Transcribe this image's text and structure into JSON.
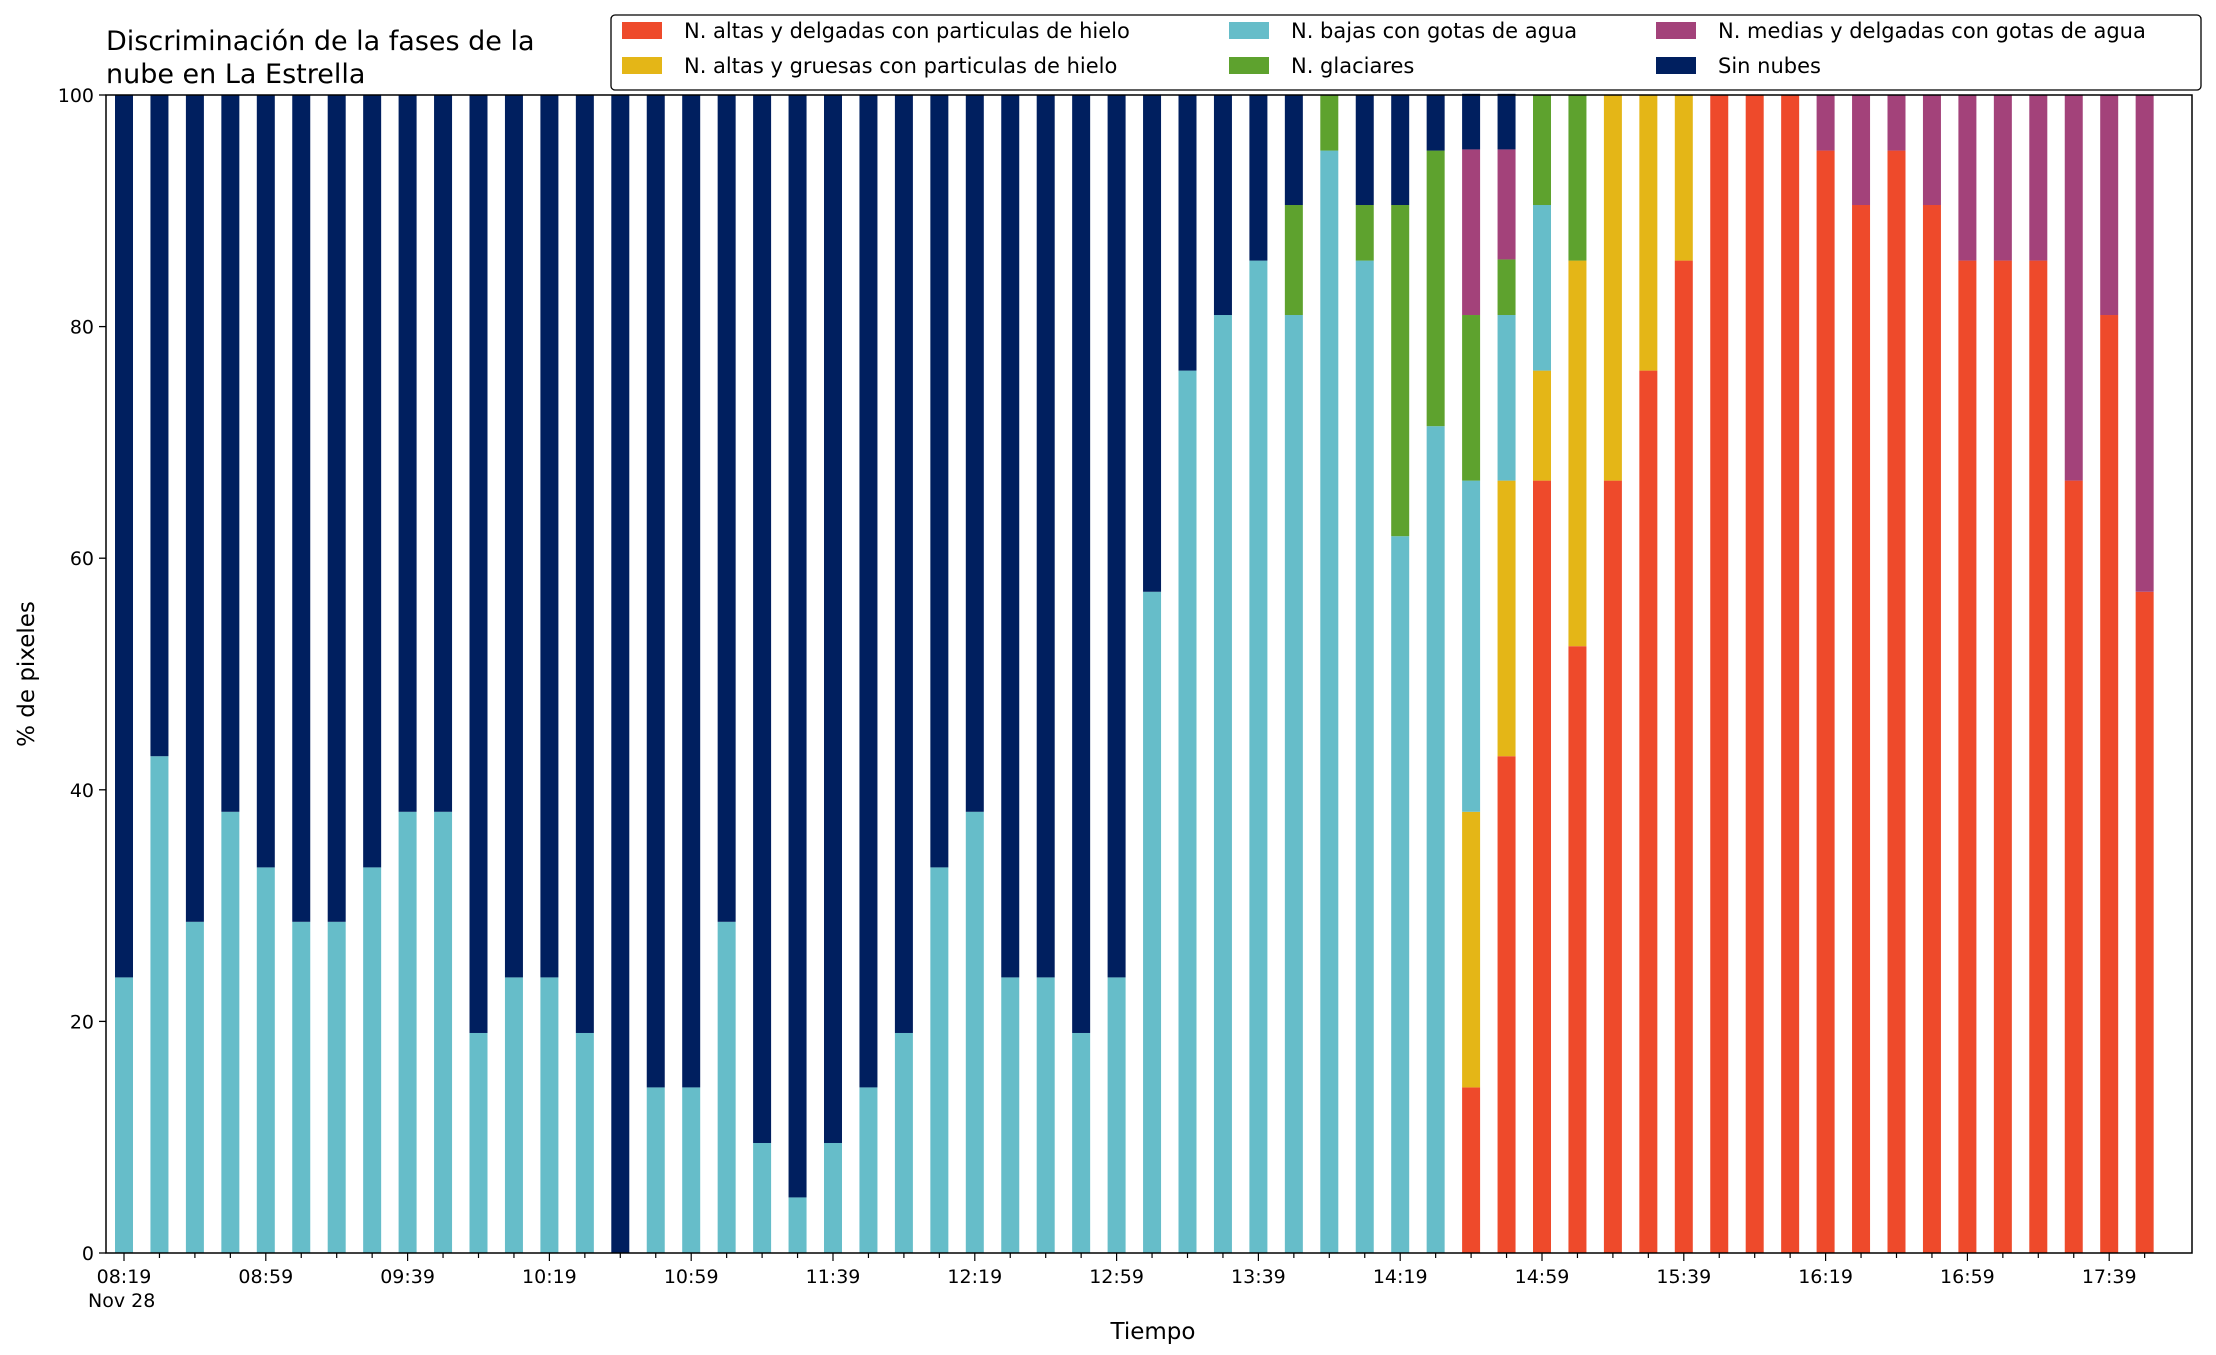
{
  "chart_data": {
    "type": "bar",
    "stacked": true,
    "title": "Discriminación de la fases de la\nnube en La Estrella",
    "xlabel": "Tiempo",
    "ylabel": "% de pixeles",
    "ylim": [
      0,
      100
    ],
    "yticks": [
      0,
      20,
      40,
      60,
      80,
      100
    ],
    "xtick_labels": [
      "08:19",
      "08:59",
      "09:39",
      "10:19",
      "10:59",
      "11:39",
      "12:19",
      "12:59",
      "13:39",
      "14:19",
      "14:59",
      "15:39",
      "16:19",
      "16:59",
      "17:39"
    ],
    "x_date_label": "Nov 28",
    "legend_position": "top-right",
    "grid": false,
    "categories": [
      "08:19",
      "08:29",
      "08:39",
      "08:49",
      "08:59",
      "09:09",
      "09:19",
      "09:29",
      "09:39",
      "09:49",
      "09:59",
      "10:09",
      "10:19",
      "10:29",
      "10:39",
      "10:49",
      "10:59",
      "11:09",
      "11:19",
      "11:29",
      "11:39",
      "11:49",
      "11:59",
      "12:09",
      "12:19",
      "12:29",
      "12:39",
      "12:49",
      "12:59",
      "13:09",
      "13:19",
      "13:29",
      "13:39",
      "13:49",
      "13:59",
      "14:09",
      "14:19",
      "14:29",
      "14:39",
      "14:49",
      "14:59",
      "15:09",
      "15:19",
      "15:29",
      "15:39",
      "15:49",
      "15:59",
      "16:09",
      "16:19",
      "16:29",
      "16:39",
      "16:49",
      "16:59",
      "17:09",
      "17:19",
      "17:29",
      "17:39",
      "17:49"
    ],
    "series": [
      {
        "name": "N. altas y delgadas con particulas de hielo",
        "color": "#ee4a2b",
        "values": [
          0,
          0,
          0,
          0,
          0,
          0,
          0,
          0,
          0,
          0,
          0,
          0,
          0,
          0,
          0,
          0,
          0,
          0,
          0,
          0,
          0,
          0,
          0,
          0,
          0,
          0,
          0,
          0,
          0,
          0,
          0,
          0,
          0,
          0,
          0,
          0,
          0,
          0,
          14.3,
          42.9,
          66.7,
          52.4,
          66.7,
          76.2,
          85.7,
          100,
          100,
          100,
          95.2,
          90.5,
          95.2,
          90.5,
          85.7,
          85.7,
          85.7,
          66.7,
          81,
          57.1
        ]
      },
      {
        "name": "N. altas y gruesas con particulas de hielo",
        "color": "#e4b617",
        "values": [
          0,
          0,
          0,
          0,
          0,
          0,
          0,
          0,
          0,
          0,
          0,
          0,
          0,
          0,
          0,
          0,
          0,
          0,
          0,
          0,
          0,
          0,
          0,
          0,
          0,
          0,
          0,
          0,
          0,
          0,
          0,
          0,
          0,
          0,
          0,
          0,
          0,
          0,
          23.8,
          23.8,
          9.5,
          33.3,
          33.3,
          23.8,
          14.3,
          0,
          0,
          0,
          0,
          0,
          0,
          0,
          0,
          0,
          0,
          0,
          0,
          0
        ]
      },
      {
        "name": "N. bajas con gotas de agua",
        "color": "#66bdc9",
        "values": [
          23.8,
          42.9,
          28.6,
          38.1,
          33.3,
          28.6,
          28.6,
          33.3,
          38.1,
          38.1,
          19,
          23.8,
          23.8,
          19,
          0,
          14.3,
          14.3,
          28.6,
          9.5,
          4.8,
          9.5,
          14.3,
          19,
          33.3,
          38.1,
          23.8,
          23.8,
          19,
          23.8,
          57.1,
          76.2,
          81,
          85.7,
          81,
          95.2,
          85.7,
          61.9,
          71.4,
          28.6,
          14.3,
          14.3,
          0,
          0,
          0,
          0,
          0,
          0,
          0,
          0,
          0,
          0,
          0,
          0,
          0,
          0,
          0,
          0,
          0
        ]
      },
      {
        "name": "N. glaciares",
        "color": "#5ea22e",
        "values": [
          0,
          0,
          0,
          0,
          0,
          0,
          0,
          0,
          0,
          0,
          0,
          0,
          0,
          0,
          0,
          0,
          0,
          0,
          0,
          0,
          0,
          0,
          0,
          0,
          0,
          0,
          0,
          0,
          0,
          0,
          0,
          0,
          0,
          9.5,
          4.8,
          4.8,
          28.6,
          23.8,
          14.3,
          4.8,
          9.5,
          14.3,
          0,
          0,
          0,
          0,
          0,
          0,
          0,
          0,
          0,
          0,
          0,
          0,
          0,
          0,
          0,
          0
        ]
      },
      {
        "name": "N. medias y delgadas con gotas de agua",
        "color": "#a3427a",
        "values": [
          0,
          0,
          0,
          0,
          0,
          0,
          0,
          0,
          0,
          0,
          0,
          0,
          0,
          0,
          0,
          0,
          0,
          0,
          0,
          0,
          0,
          0,
          0,
          0,
          0,
          0,
          0,
          0,
          0,
          0,
          0,
          0,
          0,
          0,
          0,
          0,
          0,
          0,
          14.3,
          9.5,
          0,
          0,
          0,
          0,
          0,
          0,
          0,
          0,
          4.8,
          9.5,
          4.8,
          9.5,
          14.3,
          14.3,
          14.3,
          33.3,
          19,
          42.9
        ]
      },
      {
        "name": "Sin nubes",
        "color": "#001f5f",
        "values": [
          76.2,
          57.1,
          71.4,
          61.9,
          66.7,
          71.4,
          71.4,
          66.7,
          61.9,
          61.9,
          81,
          76.2,
          76.2,
          81,
          100,
          85.7,
          85.7,
          71.4,
          90.5,
          95.2,
          90.5,
          85.7,
          81,
          66.7,
          61.9,
          76.2,
          76.2,
          81,
          76.2,
          42.9,
          23.8,
          19,
          14.3,
          9.5,
          0,
          9.5,
          9.5,
          4.8,
          4.8,
          4.8,
          0,
          0,
          0,
          0,
          0,
          0,
          0,
          0,
          0,
          0,
          0,
          0,
          0,
          0,
          0,
          0,
          0,
          0
        ]
      }
    ]
  }
}
